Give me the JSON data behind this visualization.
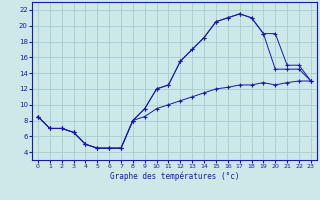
{
  "xlabel": "Graphe des températures (°c)",
  "background_color": "#cce8e8",
  "grid_color": "#aacccc",
  "line_color": "#1a1aaa",
  "x_ticks": [
    0,
    1,
    2,
    3,
    4,
    5,
    6,
    7,
    8,
    9,
    10,
    11,
    12,
    13,
    14,
    15,
    16,
    17,
    18,
    19,
    20,
    21,
    22,
    23
  ],
  "y_ticks": [
    4,
    6,
    8,
    10,
    12,
    14,
    16,
    18,
    20,
    22
  ],
  "ylim": [
    3.0,
    23.0
  ],
  "xlim": [
    -0.5,
    23.5
  ],
  "line1_x": [
    0,
    1,
    2,
    3,
    4,
    5,
    6,
    7,
    8,
    9,
    10,
    11,
    12,
    13,
    14,
    15,
    16,
    17,
    18,
    19,
    20,
    21,
    22,
    23
  ],
  "line1_y": [
    8.5,
    7.0,
    7.0,
    6.5,
    5.0,
    4.5,
    4.5,
    4.5,
    8.0,
    9.5,
    12.0,
    12.5,
    15.5,
    17.0,
    18.5,
    20.5,
    21.0,
    21.5,
    21.0,
    19.0,
    14.5,
    14.5,
    14.5,
    13.0
  ],
  "line2_x": [
    0,
    1,
    2,
    3,
    4,
    5,
    6,
    7,
    8,
    9,
    10,
    11,
    12,
    13,
    14,
    15,
    16,
    17,
    18,
    19,
    20,
    21,
    22,
    23
  ],
  "line2_y": [
    8.5,
    7.0,
    7.0,
    6.5,
    5.0,
    4.5,
    4.5,
    4.5,
    8.0,
    9.5,
    12.0,
    12.5,
    15.5,
    17.0,
    18.5,
    20.5,
    21.0,
    21.5,
    21.0,
    19.0,
    19.0,
    15.0,
    15.0,
    13.0
  ],
  "line3_x": [
    0,
    1,
    2,
    3,
    4,
    5,
    6,
    7,
    8,
    9,
    10,
    11,
    12,
    13,
    14,
    15,
    16,
    17,
    18,
    19,
    20,
    21,
    22,
    23
  ],
  "line3_y": [
    8.5,
    7.0,
    7.0,
    6.5,
    5.0,
    4.5,
    4.5,
    4.5,
    8.0,
    8.5,
    9.5,
    10.0,
    10.5,
    11.0,
    11.5,
    12.0,
    12.2,
    12.5,
    12.5,
    12.8,
    12.5,
    12.8,
    13.0,
    13.0
  ]
}
